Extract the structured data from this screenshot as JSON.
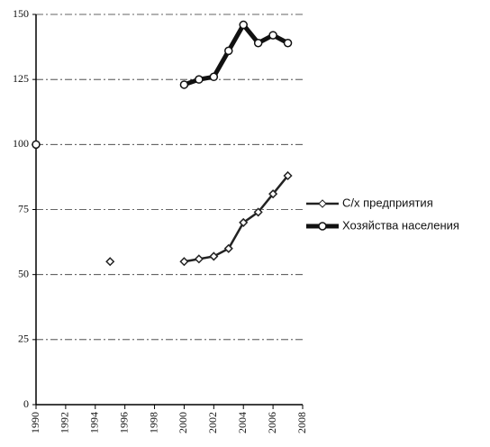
{
  "chart_data": {
    "type": "line",
    "x": [
      1990,
      1995,
      2000,
      2001,
      2002,
      2003,
      2004,
      2005,
      2006,
      2007
    ],
    "series": [
      {
        "name": "С/х предприятия",
        "color": "#222222",
        "values": [
          100,
          55,
          55,
          56,
          57,
          60,
          70,
          74,
          81,
          88
        ]
      },
      {
        "name": "Хозяйства населения",
        "color": "#111111",
        "values": [
          100,
          null,
          123,
          125,
          126,
          136,
          146,
          139,
          142,
          139
        ]
      }
    ],
    "xlim": [
      1990,
      2008
    ],
    "xticks": [
      1990,
      1992,
      1994,
      1996,
      1998,
      2000,
      2002,
      2004,
      2006,
      2008
    ],
    "ylim": [
      0,
      150
    ],
    "yticks": [
      0,
      25,
      50,
      75,
      100,
      125,
      150
    ],
    "grid": true,
    "legend": "right"
  }
}
